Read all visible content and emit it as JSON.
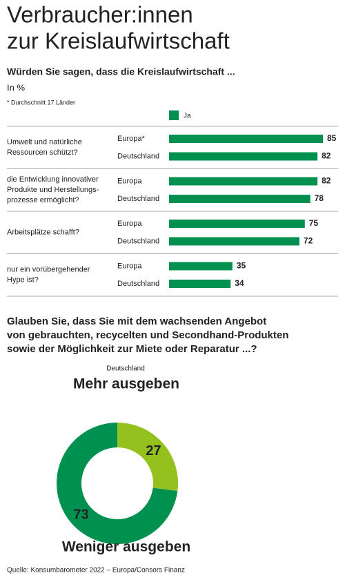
{
  "title_lines": [
    "Verbraucher:innen",
    "zur Kreislaufwirtschaft"
  ],
  "source": "Quelle: Konsumbarometer 2022 – Europa/Consors Finanz",
  "chart_data": [
    {
      "type": "bar",
      "title": "Würden Sie sagen, dass die Kreislaufwirtschaft ...",
      "unit": "In %",
      "note": "* Durchschnitt 17 Länder",
      "legend": "Ja",
      "color": "#009150",
      "groups": [
        {
          "label": [
            "Umwelt und natürliche",
            "Ressourcen schützt?"
          ],
          "rows": [
            {
              "label": "Europa*",
              "value": 85
            },
            {
              "label": "Deutschland",
              "value": 82
            }
          ]
        },
        {
          "label": [
            "die Entwicklung innovativer",
            "Produkte und Herstellungs-",
            "prozesse ermöglicht?"
          ],
          "rows": [
            {
              "label": "Europa",
              "value": 82
            },
            {
              "label": "Deutschland",
              "value": 78
            }
          ]
        },
        {
          "label": [
            "Arbeitsplätze schafft?"
          ],
          "rows": [
            {
              "label": "Europa",
              "value": 75
            },
            {
              "label": "Deutschland",
              "value": 72
            }
          ]
        },
        {
          "label": [
            "nur ein vorübergehender",
            "Hype ist?"
          ],
          "rows": [
            {
              "label": "Europa",
              "value": 35
            },
            {
              "label": "Deutschland",
              "value": 34
            }
          ]
        }
      ]
    },
    {
      "type": "pie",
      "title": [
        "Glauben Sie, dass Sie mit dem wachsenden Angebot",
        "von gebrauchten, recycelten und Secondhand-Produkten",
        "sowie der Möglichkeit zur Miete oder Reparatur ...?"
      ],
      "subtitle": "Deutschland",
      "categories": [
        "Mehr ausgeben",
        "Weniger ausgeben"
      ],
      "values": [
        27,
        73
      ],
      "colors": [
        "#95c11f",
        "#009150"
      ]
    }
  ]
}
